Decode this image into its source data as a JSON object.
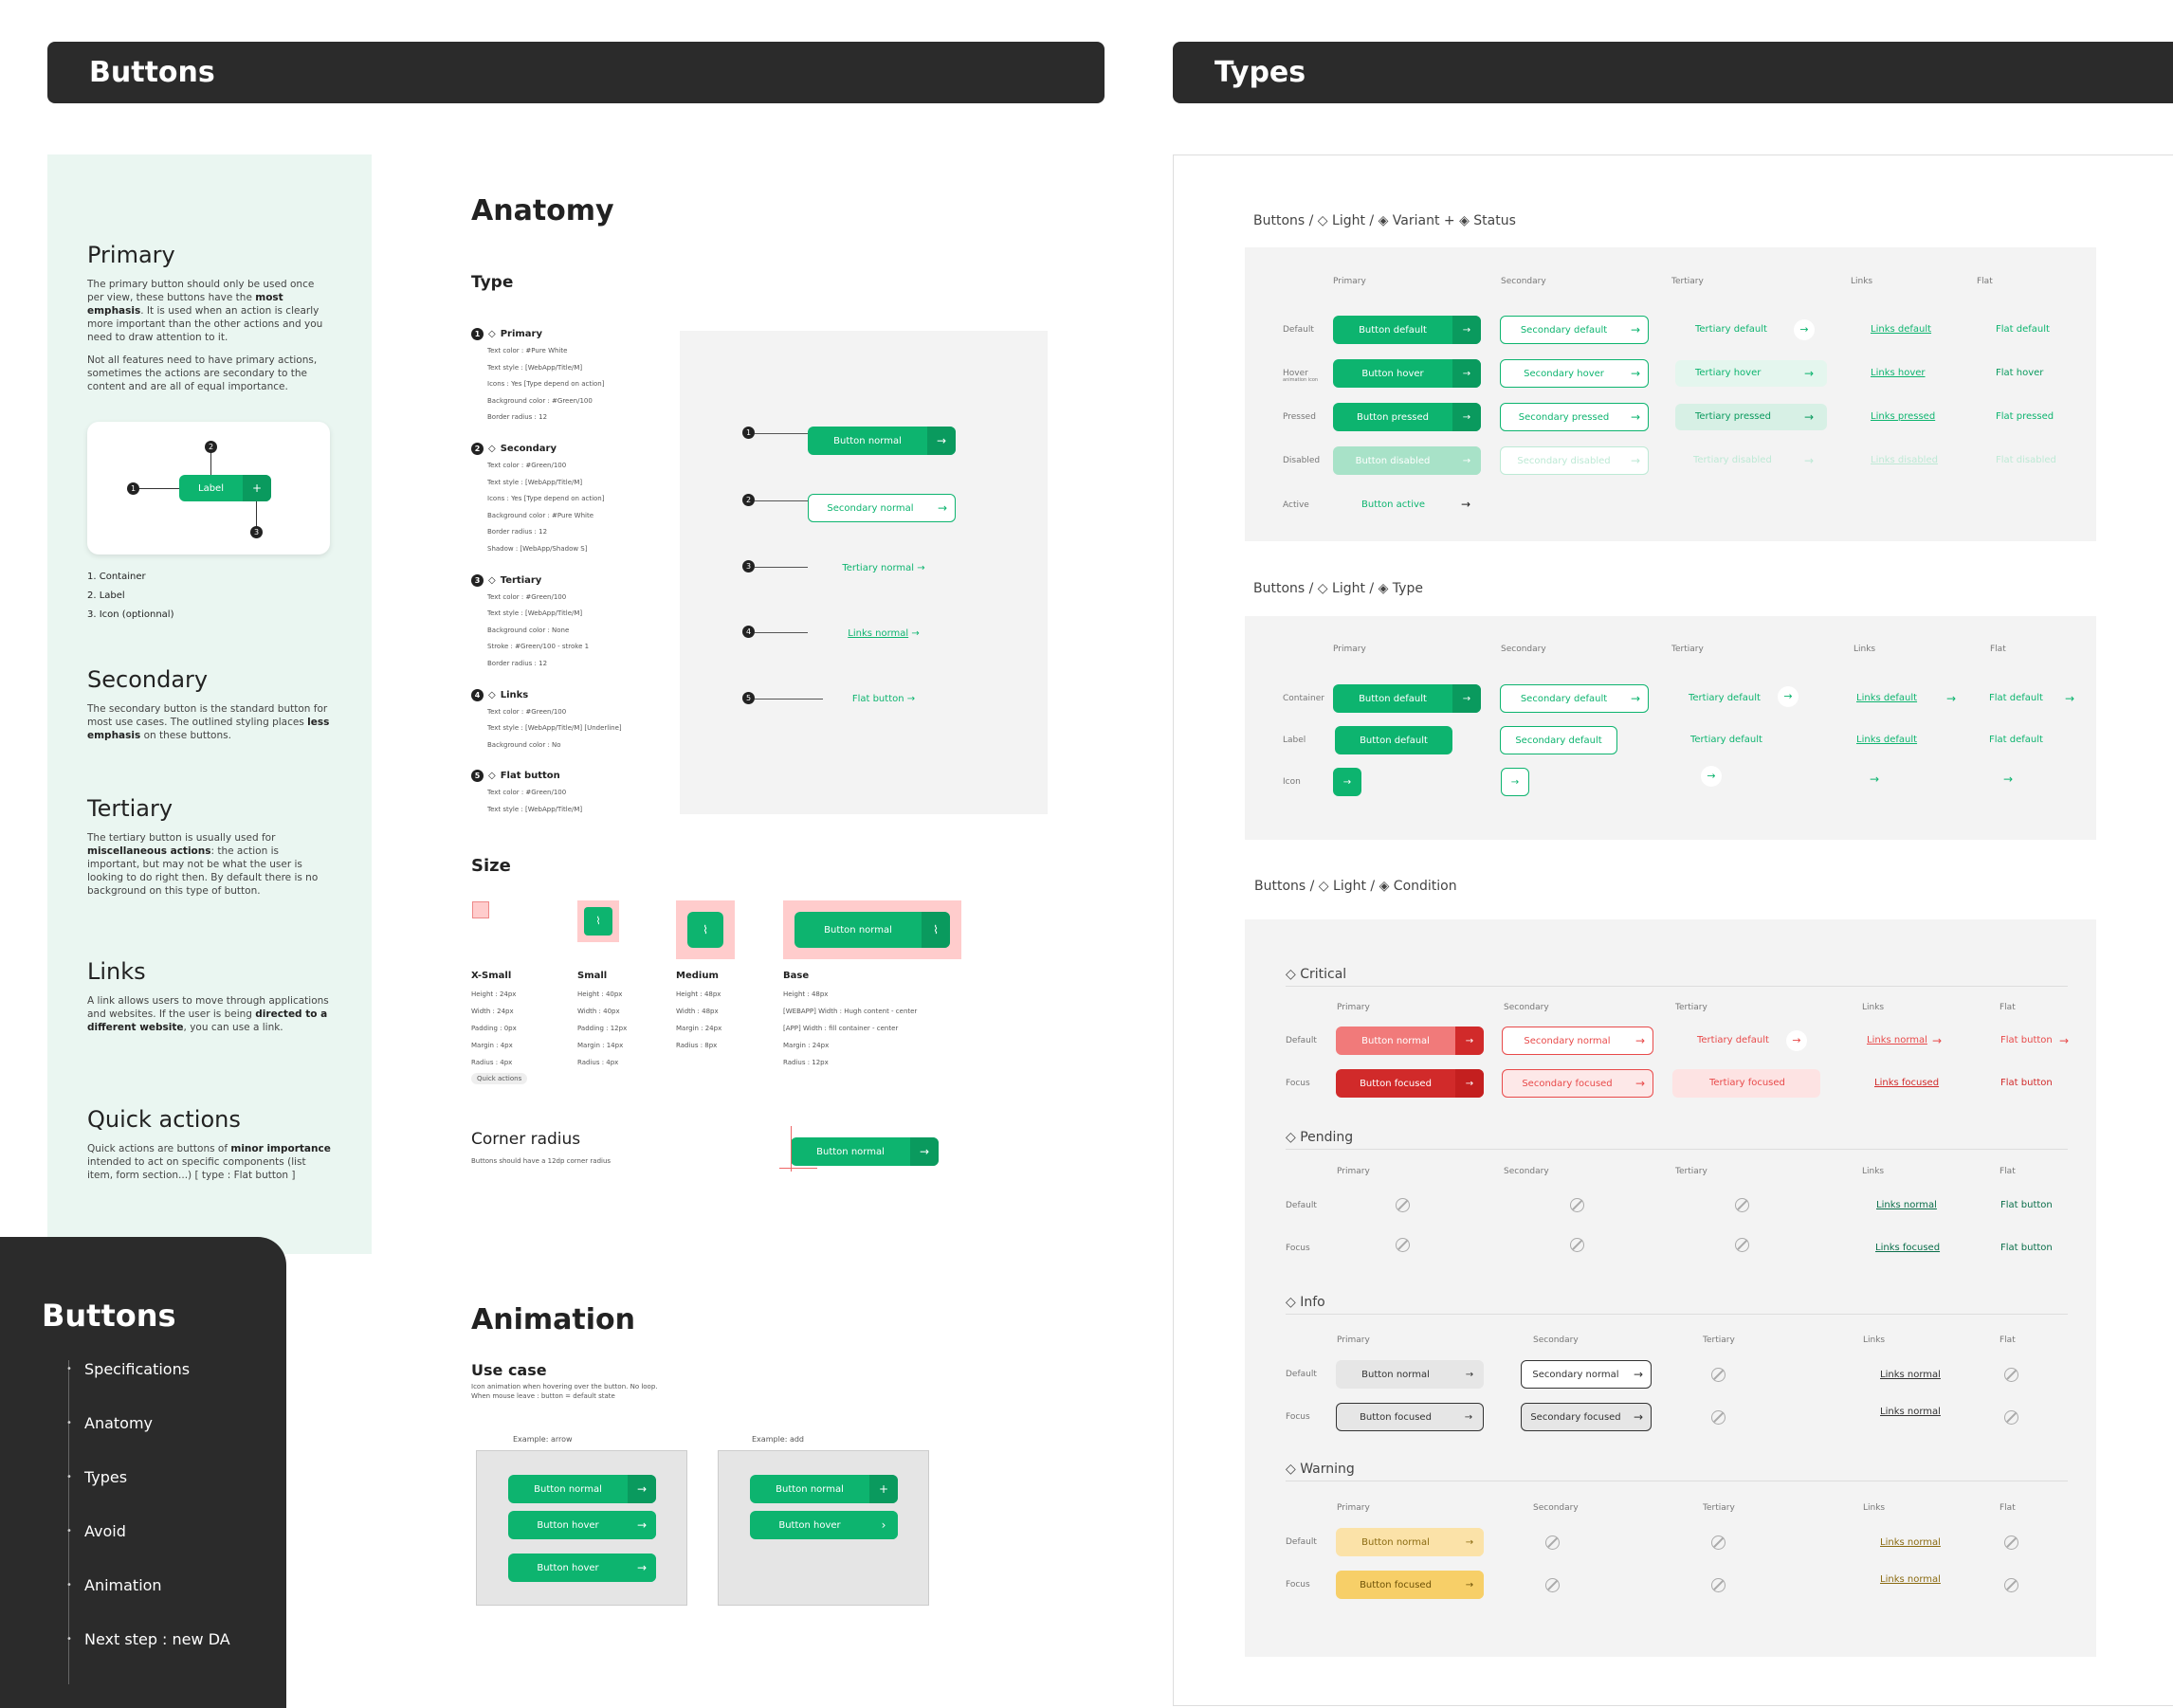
{
  "banners": {
    "left": "Buttons",
    "right": "Types"
  },
  "sidebar": {
    "primary": {
      "title": "Primary",
      "p1a": "The primary button should only be used once per view, these buttons have the ",
      "p1b": "most emphasis",
      ". It is used when an action is clearly more important than the other actions and you need to draw attention to it.": "",
      "p1c": ". It is used when an action is clearly more important than the other actions and you need to draw attention to it.",
      "p2": "Not all features need to have primary actions, sometimes the actions are secondary to the content and are all of equal importance.",
      "demo_label": "Label",
      "list": [
        "1. Container",
        "2. Label",
        "3. Icon (optionnal)"
      ]
    },
    "secondary": {
      "title": "Secondary",
      "a": "The secondary button is the standard button for most use cases. The outlined styling places ",
      "b": "less emphasis",
      "c": " on these buttons."
    },
    "tertiary": {
      "title": "Tertiary",
      "a": "The tertiary button is usually used for ",
      "b": "miscellaneous actions",
      "c": ": the action is important, but may not be what the user is looking to do right then. By default there is no background on this type of button."
    },
    "links": {
      "title": "Links",
      "a": "A link allows users to move through applications and websites. If the user is being ",
      "b": "directed to a different website",
      "c": ", you can use a link."
    },
    "quick": {
      "title": "Quick actions",
      "a": "Quick actions are buttons of ",
      "b": "minor importance",
      "c": " intended to act on specific components (list item, form section...) [ type : Flat button ]"
    }
  },
  "nav": {
    "title": "Buttons",
    "items": [
      "Specifications",
      "Anatomy",
      "Types",
      "Avoid",
      "Animation",
      "Next step : new DA"
    ]
  },
  "anatomy": {
    "title": "Anatomy",
    "type_title": "Type",
    "types": [
      {
        "n": "1",
        "name": "Primary",
        "lines": [
          "Text color : #Pure White",
          "Text style : [WebApp/Title/M]",
          "Icons : Yes [Type depend on action]",
          "Background color : #Green/100",
          "Border radius : 12"
        ]
      },
      {
        "n": "2",
        "name": "Secondary",
        "lines": [
          "Text color : #Green/100",
          "Text style : [WebApp/Title/M]",
          "Icons : Yes [Type depend on action]",
          "Background color : #Pure White",
          "Border radius : 12",
          "Shadow : [WebApp/Shadow S]"
        ]
      },
      {
        "n": "3",
        "name": "Tertiary",
        "lines": [
          "Text color : #Green/100",
          "Text style : [WebApp/Title/M]",
          "Background color : None",
          "Stroke : #Green/100 - stroke 1",
          "Border radius : 12"
        ]
      },
      {
        "n": "4",
        "name": "Links",
        "lines": [
          "Text color : #Green/100",
          "Text style : [WebApp/Title/M] [Underline]",
          "Background color : No"
        ]
      },
      {
        "n": "5",
        "name": "Flat button",
        "lines": [
          "Text color : #Green/100",
          "Text style : [WebApp/Title/M]"
        ]
      }
    ],
    "preview": [
      "Button normal",
      "Secondary normal",
      "Tertiary normal",
      "Links normal",
      "Flat button"
    ]
  },
  "size": {
    "title": "Size",
    "cols": [
      {
        "name": "X-Small",
        "lines": [
          "Height : 24px",
          "Width : 24px",
          "Padding : 0px",
          "Margin : 4px",
          "Radius : 4px"
        ],
        "tag": "Quick actions"
      },
      {
        "name": "Small",
        "lines": [
          "Height : 40px",
          "Width : 40px",
          "Padding : 12px",
          "Margin : 14px",
          "Radius : 4px"
        ]
      },
      {
        "name": "Medium",
        "lines": [
          "Height : 48px",
          "Width : 48px",
          "Margin : 24px",
          "Radius : 8px"
        ]
      },
      {
        "name": "Base",
        "lines": [
          "Height : 48px",
          "[WEBAPP] Width : Hugh content - center",
          "[APP] Width : fill container - center",
          "Margin : 24px",
          "Radius : 12px"
        ]
      }
    ],
    "base_label": "Button normal"
  },
  "corner": {
    "title": "Corner radius",
    "text": "Buttons should have a 12dp corner radius",
    "btn": "Button normal"
  },
  "animation": {
    "title": "Animation",
    "use": "Use case",
    "desc1": "Icon animation when hovering over the button. No loop.",
    "desc2": "When mouse leave : button = default state",
    "ex1": "Example: arrow",
    "ex2": "Example: add",
    "b1": [
      "Button normal",
      "Button hover",
      "Button hover"
    ],
    "b2": [
      "Button normal",
      "Button hover"
    ]
  },
  "types": {
    "g1": {
      "title": "Buttons / ◇ Light / ◈ Variant + ◈ Status",
      "cols": [
        "Primary",
        "Secondary",
        "Tertiary",
        "Links",
        "Flat"
      ],
      "rows": [
        "Default",
        "Hover",
        "Pressed",
        "Disabled",
        "Active"
      ],
      "hover_note": "animation icon",
      "primary": [
        "Button default",
        "Button hover",
        "Button pressed",
        "Button disabled",
        "Button active"
      ],
      "secondary": [
        "Secondary default",
        "Secondary hover",
        "Secondary pressed",
        "Secondary disabled"
      ],
      "tertiary": [
        "Tertiary default",
        "Tertiary hover",
        "Tertiary pressed",
        "Tertiary disabled"
      ],
      "links": [
        "Links default",
        "Links hover",
        "Links pressed",
        "Links disabled"
      ],
      "flat": [
        "Flat default",
        "Flat hover",
        "Flat pressed",
        "Flat disabled"
      ]
    },
    "g2": {
      "title": "Buttons / ◇ Light / ◈ Type",
      "cols": [
        "Primary",
        "Secondary",
        "Tertiary",
        "Links",
        "Flat"
      ],
      "rows": [
        "Container",
        "Label",
        "Icon"
      ],
      "primary": "Button default",
      "secondary": "Secondary default",
      "tertiary": "Tertiary default",
      "links": "Links default",
      "flat": "Flat default"
    },
    "g3": {
      "title": "Buttons / ◇ Light / ◈ Condition",
      "cols": [
        "Primary",
        "Secondary",
        "Tertiary",
        "Links",
        "Flat"
      ],
      "rows": [
        "Default",
        "Focus"
      ],
      "critical": {
        "title": "◇ Critical",
        "p": [
          "Button normal",
          "Button focused"
        ],
        "s": [
          "Secondary normal",
          "Secondary focused"
        ],
        "t": [
          "Tertiary default",
          "Tertiary focused"
        ],
        "l": [
          "Links normal",
          "Links focused"
        ],
        "f": [
          "Flat button",
          "Flat button"
        ]
      },
      "pending": {
        "title": "◇ Pending",
        "l": [
          "Links normal",
          "Links focused"
        ],
        "f": [
          "Flat button",
          "Flat button"
        ]
      },
      "info": {
        "title": "◇ Info",
        "p": [
          "Button normal",
          "Button focused"
        ],
        "s": [
          "Secondary normal",
          "Secondary focused"
        ],
        "l": [
          "Links normal",
          "Links normal"
        ]
      },
      "warning": {
        "title": "◇ Warning",
        "p": [
          "Button normal",
          "Button focused"
        ],
        "l": [
          "Links normal",
          "Links normal"
        ]
      }
    }
  }
}
